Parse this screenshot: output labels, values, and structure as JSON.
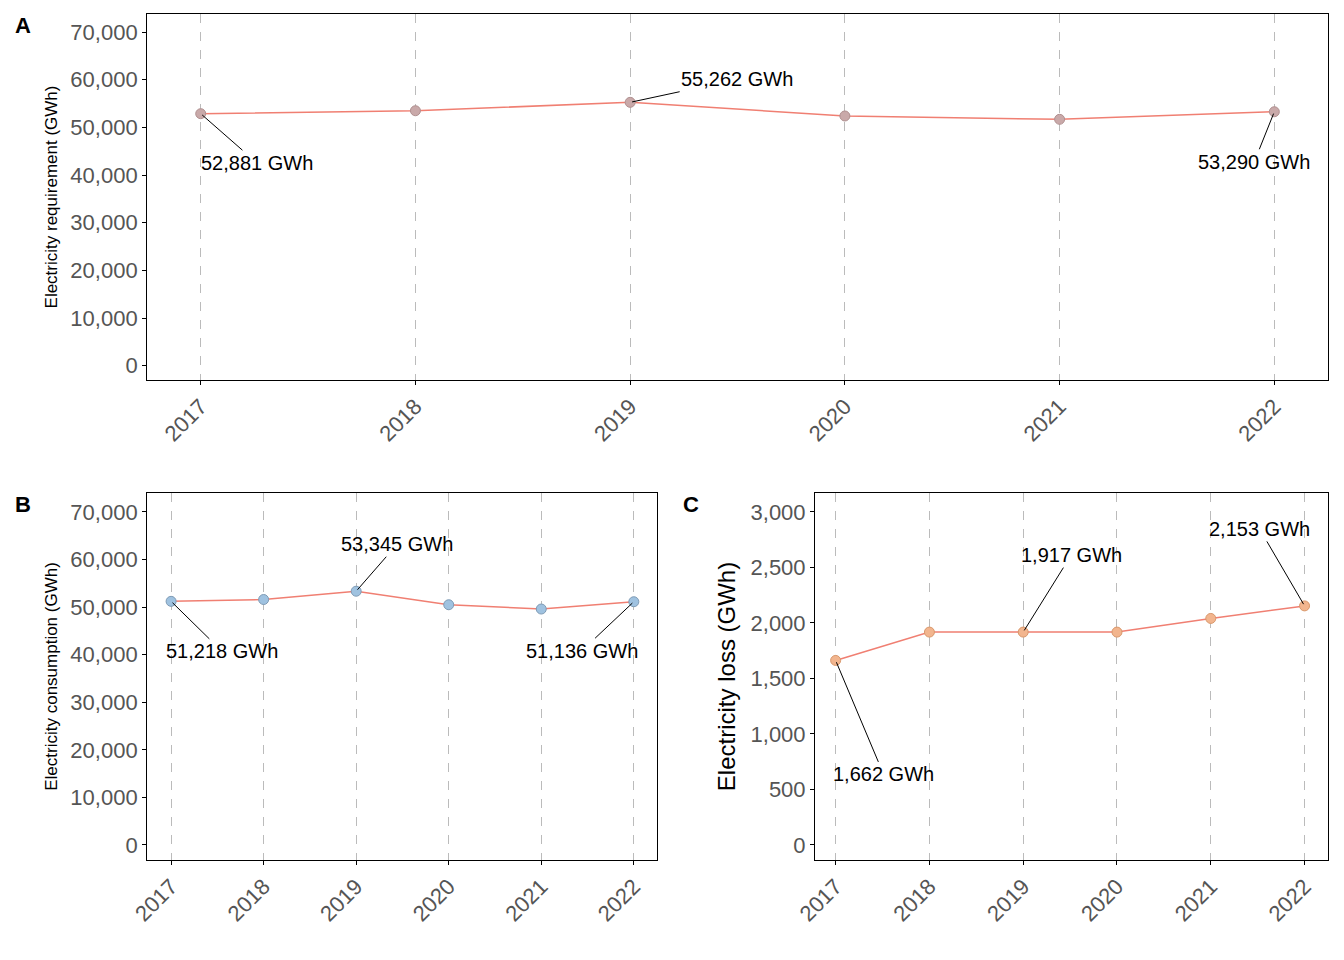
{
  "chart_data": [
    {
      "type": "line",
      "title": "A",
      "y_label": "Electricity requirement (GWh)",
      "x": [
        2017,
        2018,
        2019,
        2020,
        2021,
        2022
      ],
      "values": [
        52881,
        53500,
        55262,
        52400,
        51700,
        53290
      ],
      "color": "#f07f72",
      "marker": "circle",
      "xlim": [
        2016.75,
        2022.25
      ],
      "xticks": [
        2017,
        2018,
        2019,
        2020,
        2021,
        2022
      ],
      "ylim": [
        -3000,
        73800
      ],
      "yticks": [
        0,
        {
          "value": 10000,
          "label": "10,000"
        },
        {
          "value": 20000,
          "label": "20,000"
        },
        {
          "value": 30000,
          "label": "30,000"
        },
        {
          "value": 40000,
          "label": "40,000"
        },
        {
          "value": 50000,
          "label": "50,000"
        },
        {
          "value": 60000,
          "label": "60,000"
        },
        {
          "value": 70000,
          "label": "70,000"
        }
      ],
      "grid": "x",
      "annotations": [
        {
          "x": 2017,
          "y": 52881,
          "text": "52,881 GWh"
        },
        {
          "x": 2019,
          "y": 55262,
          "text": "55,262 GWh"
        },
        {
          "x": 2022,
          "y": 53290,
          "text": "53,290 GWh"
        }
      ]
    },
    {
      "type": "line",
      "title": "B",
      "y_label": "Electricity consumption (GWh)",
      "x": [
        2017,
        2018,
        2019,
        2020,
        2021,
        2022
      ],
      "values": [
        51218,
        51600,
        53345,
        50500,
        49600,
        51136
      ],
      "color": "#f07f72",
      "marker": "circle",
      "xlim": [
        2016.74,
        2022.25
      ],
      "xticks": [
        2017,
        2018,
        2019,
        2020,
        2021,
        2022
      ],
      "ylim": [
        -3150,
        74000
      ],
      "yticks": [
        0,
        {
          "value": 10000,
          "label": "10,000"
        },
        {
          "value": 20000,
          "label": "20,000"
        },
        {
          "value": 30000,
          "label": "30,000"
        },
        {
          "value": 40000,
          "label": "40,000"
        },
        {
          "value": 50000,
          "label": "50,000"
        },
        {
          "value": 60000,
          "label": "60,000"
        },
        {
          "value": 70000,
          "label": "70,000"
        }
      ],
      "grid": "x",
      "annotations": [
        {
          "x": 2017,
          "y": 51218,
          "text": "51,218 GWh"
        },
        {
          "x": 2019,
          "y": 53345,
          "text": "53,345 GWh"
        },
        {
          "x": 2022,
          "y": 51136,
          "text": "51,136 GWh"
        }
      ]
    },
    {
      "type": "line",
      "title": "C",
      "y_label": "Electricity loss (GWh)",
      "x": [
        2017,
        2018,
        2019,
        2020,
        2021,
        2022
      ],
      "values": [
        1662,
        1917,
        1917,
        1917,
        2040,
        2153
      ],
      "color": "#f07f72",
      "marker": "circle",
      "xlim": [
        2016.78,
        2022.25
      ],
      "xticks": [
        2017,
        2018,
        2019,
        2020,
        2021,
        2022
      ],
      "ylim": [
        -135,
        3170
      ],
      "yticks": [
        0,
        500,
        {
          "value": 1000,
          "label": "1,000"
        },
        {
          "value": 1500,
          "label": "1,500"
        },
        {
          "value": 2000,
          "label": "2,000"
        },
        {
          "value": 2500,
          "label": "2,500"
        },
        {
          "value": 3000,
          "label": "3,000"
        }
      ],
      "grid": "x",
      "annotations": [
        {
          "x": 2017,
          "y": 1662,
          "text": "1,662 GWh"
        },
        {
          "x": 2019,
          "y": 1917,
          "text": "1,917 GWh"
        },
        {
          "x": 2022,
          "y": 2153,
          "text": "2,153 GWh"
        }
      ]
    }
  ]
}
